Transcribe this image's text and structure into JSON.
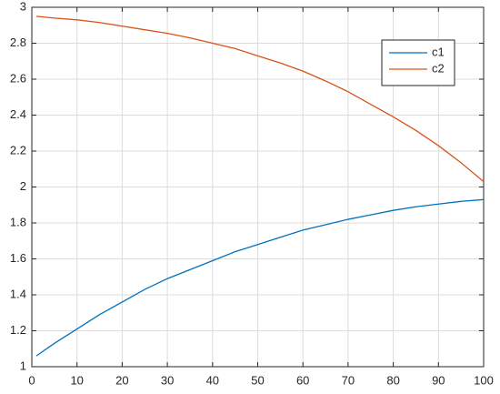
{
  "chart_data": {
    "type": "line",
    "x": [
      1,
      5,
      10,
      15,
      20,
      25,
      30,
      35,
      40,
      45,
      50,
      55,
      60,
      65,
      70,
      75,
      80,
      85,
      90,
      95,
      100
    ],
    "series": [
      {
        "name": "c1",
        "color": "#0072bd",
        "values": [
          1.06,
          1.13,
          1.21,
          1.29,
          1.36,
          1.43,
          1.49,
          1.54,
          1.59,
          1.64,
          1.68,
          1.72,
          1.76,
          1.79,
          1.82,
          1.845,
          1.87,
          1.89,
          1.905,
          1.92,
          1.93
        ]
      },
      {
        "name": "c2",
        "color": "#d95319",
        "values": [
          2.95,
          2.94,
          2.93,
          2.915,
          2.895,
          2.875,
          2.855,
          2.83,
          2.8,
          2.77,
          2.73,
          2.69,
          2.645,
          2.59,
          2.53,
          2.46,
          2.39,
          2.315,
          2.23,
          2.135,
          2.03
        ]
      }
    ],
    "xlim": [
      0,
      100
    ],
    "xticks": [
      0,
      10,
      20,
      30,
      40,
      50,
      60,
      70,
      80,
      90,
      100
    ],
    "ylim": [
      1,
      3
    ],
    "yticks": [
      1,
      1.2,
      1.4,
      1.6,
      1.8,
      2,
      2.2,
      2.4,
      2.6,
      2.8,
      3
    ],
    "grid": true,
    "legend": "northeast"
  }
}
